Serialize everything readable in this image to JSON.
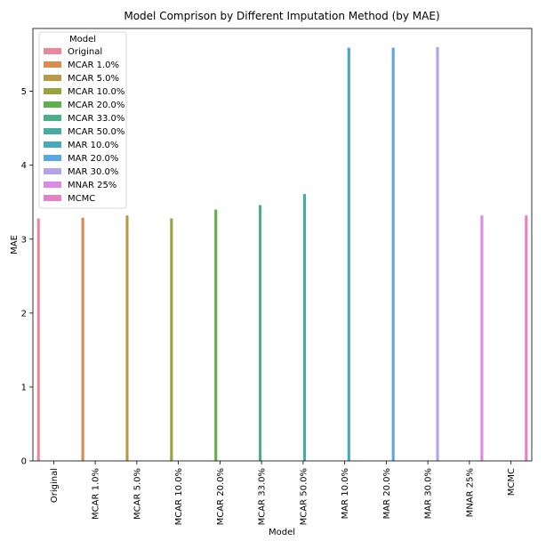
{
  "chart_data": {
    "type": "bar",
    "title": "Model Comprison by Different Imputation Method (by MAE)",
    "xlabel": "Model",
    "ylabel": "MAE",
    "ylim": [
      0,
      5.85
    ],
    "yticks": [
      0,
      1,
      2,
      3,
      4,
      5
    ],
    "grid": false,
    "legend": {
      "title": "Model",
      "placement": "top-left"
    },
    "categories": [
      "Original",
      "MCAR 1.0%",
      "MCAR 5.0%",
      "MCAR 10.0%",
      "MCAR 20.0%",
      "MCAR 33.0%",
      "MCAR 50.0%",
      "MAR 10.0%",
      "MAR 20.0%",
      "MAR 30.0%",
      "MNAR 25%",
      "MCMC"
    ],
    "series": [
      {
        "name": "Original",
        "color": "#e8889a",
        "category": "Original",
        "value": 3.28
      },
      {
        "name": "MCAR 1.0%",
        "color": "#dd8a4e",
        "category": "MCAR 1.0%",
        "value": 3.29
      },
      {
        "name": "MCAR 5.0%",
        "color": "#b79a45",
        "category": "MCAR 5.0%",
        "value": 3.32
      },
      {
        "name": "MCAR 10.0%",
        "color": "#9aa23f",
        "category": "MCAR 10.0%",
        "value": 3.28
      },
      {
        "name": "MCAR 20.0%",
        "color": "#5faf4c",
        "category": "MCAR 20.0%",
        "value": 3.4
      },
      {
        "name": "MCAR 33.0%",
        "color": "#4ab088",
        "category": "MCAR 33.0%",
        "value": 3.46
      },
      {
        "name": "MCAR 50.0%",
        "color": "#45ad9f",
        "category": "MCAR 50.0%",
        "value": 3.61
      },
      {
        "name": "MAR 10.0%",
        "color": "#45aabb",
        "category": "MAR 10.0%",
        "value": 5.59
      },
      {
        "name": "MAR 20.0%",
        "color": "#5aa8dd",
        "category": "MAR 20.0%",
        "value": 5.59
      },
      {
        "name": "MAR 30.0%",
        "color": "#b5a2ea",
        "category": "MAR 30.0%",
        "value": 5.6
      },
      {
        "name": "MNAR 25%",
        "color": "#dc8ae4",
        "category": "MNAR 25%",
        "value": 3.32
      },
      {
        "name": "MCMC",
        "color": "#e482c5",
        "category": "MCMC",
        "value": 3.32
      }
    ]
  }
}
